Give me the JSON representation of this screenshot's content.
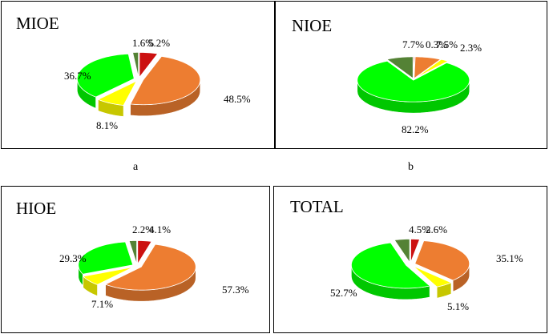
{
  "subfigure_labels": [
    "a",
    "b"
  ],
  "colors": {
    "red": "#cc1111",
    "orange": "#ed7d31",
    "yellow": "#ffff00",
    "green": "#00ff00",
    "dark_green": "#548235"
  },
  "chart_data": [
    {
      "type": "pie",
      "style": "3d",
      "title": "MIOE",
      "series": [
        {
          "categories": [
            "red",
            "orange",
            "yellow",
            "green",
            "dark_green"
          ],
          "values": [
            5.2,
            48.5,
            8.1,
            36.7,
            1.6
          ],
          "data_labels": [
            "5.2%",
            "48.5%",
            "8.1%",
            "36.7%",
            "1.6%"
          ]
        }
      ]
    },
    {
      "type": "pie",
      "style": "3d",
      "title": "NIOE",
      "series": [
        {
          "categories": [
            "red",
            "orange",
            "yellow",
            "green",
            "dark_green"
          ],
          "values": [
            0.3,
            7.5,
            2.3,
            82.2,
            7.7
          ],
          "data_labels": [
            "0.3%",
            "7.5%",
            "2.3%",
            "82.2%",
            "7.7%"
          ]
        }
      ]
    },
    {
      "type": "pie",
      "style": "3d",
      "title": "HIOE",
      "series": [
        {
          "categories": [
            "red",
            "orange",
            "yellow",
            "green",
            "dark_green"
          ],
          "values": [
            4.1,
            57.3,
            7.1,
            29.3,
            2.2
          ],
          "data_labels": [
            "4.1%",
            "57.3%",
            "7.1%",
            "29.3%",
            "2.2%"
          ]
        }
      ]
    },
    {
      "type": "pie",
      "style": "3d",
      "title": "TOTAL",
      "series": [
        {
          "categories": [
            "red",
            "orange",
            "yellow",
            "green",
            "dark_green"
          ],
          "values": [
            2.6,
            35.1,
            5.1,
            52.7,
            4.5
          ],
          "data_labels": [
            "2.6%",
            "35.1%",
            "5.1%",
            "52.7%",
            "4.5%"
          ]
        }
      ]
    }
  ]
}
